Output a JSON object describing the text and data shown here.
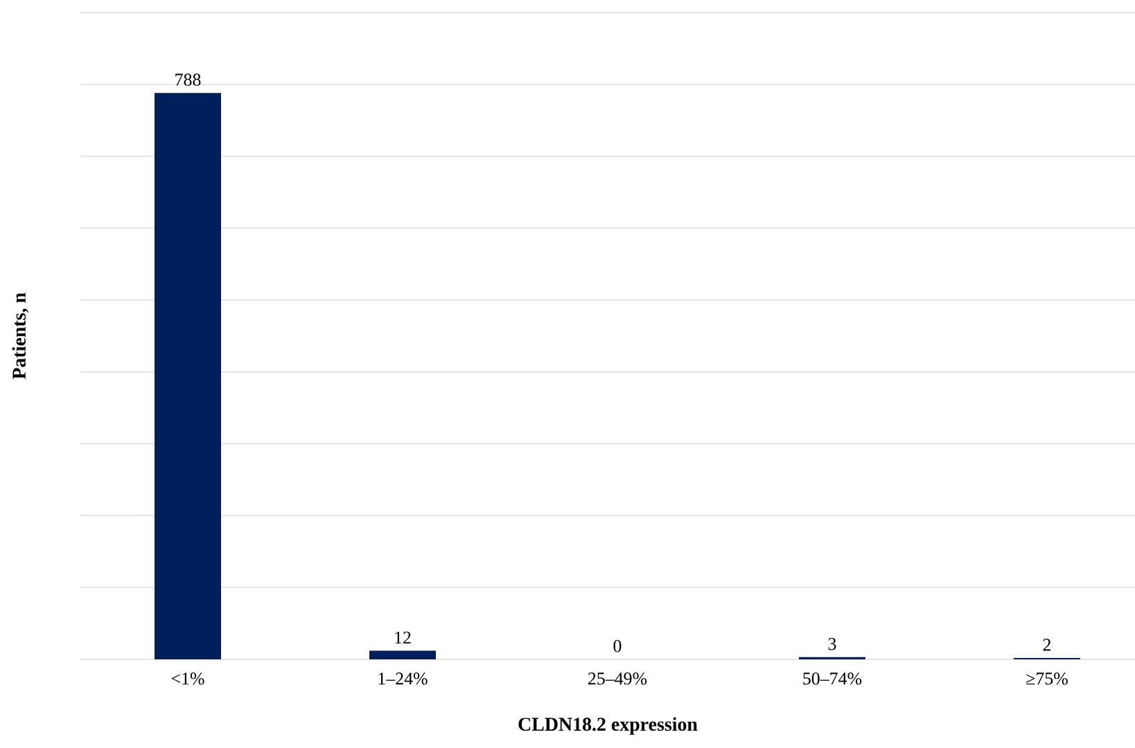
{
  "chart_data": {
    "type": "bar",
    "xlabel": "CLDN18.2 expression",
    "ylabel": "Patients, n",
    "categories": [
      "<1%",
      "1–24%",
      "25–49%",
      "50–74%",
      "≥75%"
    ],
    "values": [
      788,
      12,
      0,
      3,
      2
    ],
    "color": "#001f5b",
    "data_labels": true,
    "ylim": [
      0,
      900
    ],
    "yticks": [
      {
        "value": 0,
        "label": null
      },
      {
        "value": 100,
        "label": null
      },
      {
        "value": 200,
        "label": null
      },
      {
        "value": 300,
        "label": null
      },
      {
        "value": 400,
        "label": null
      },
      {
        "value": 500,
        "label": null
      },
      {
        "value": 600,
        "label": null
      },
      {
        "value": 700,
        "label": null
      },
      {
        "value": 800,
        "label": null
      },
      {
        "value": 900,
        "label": null
      }
    ],
    "grid": "y",
    "tick_labels": "x"
  }
}
